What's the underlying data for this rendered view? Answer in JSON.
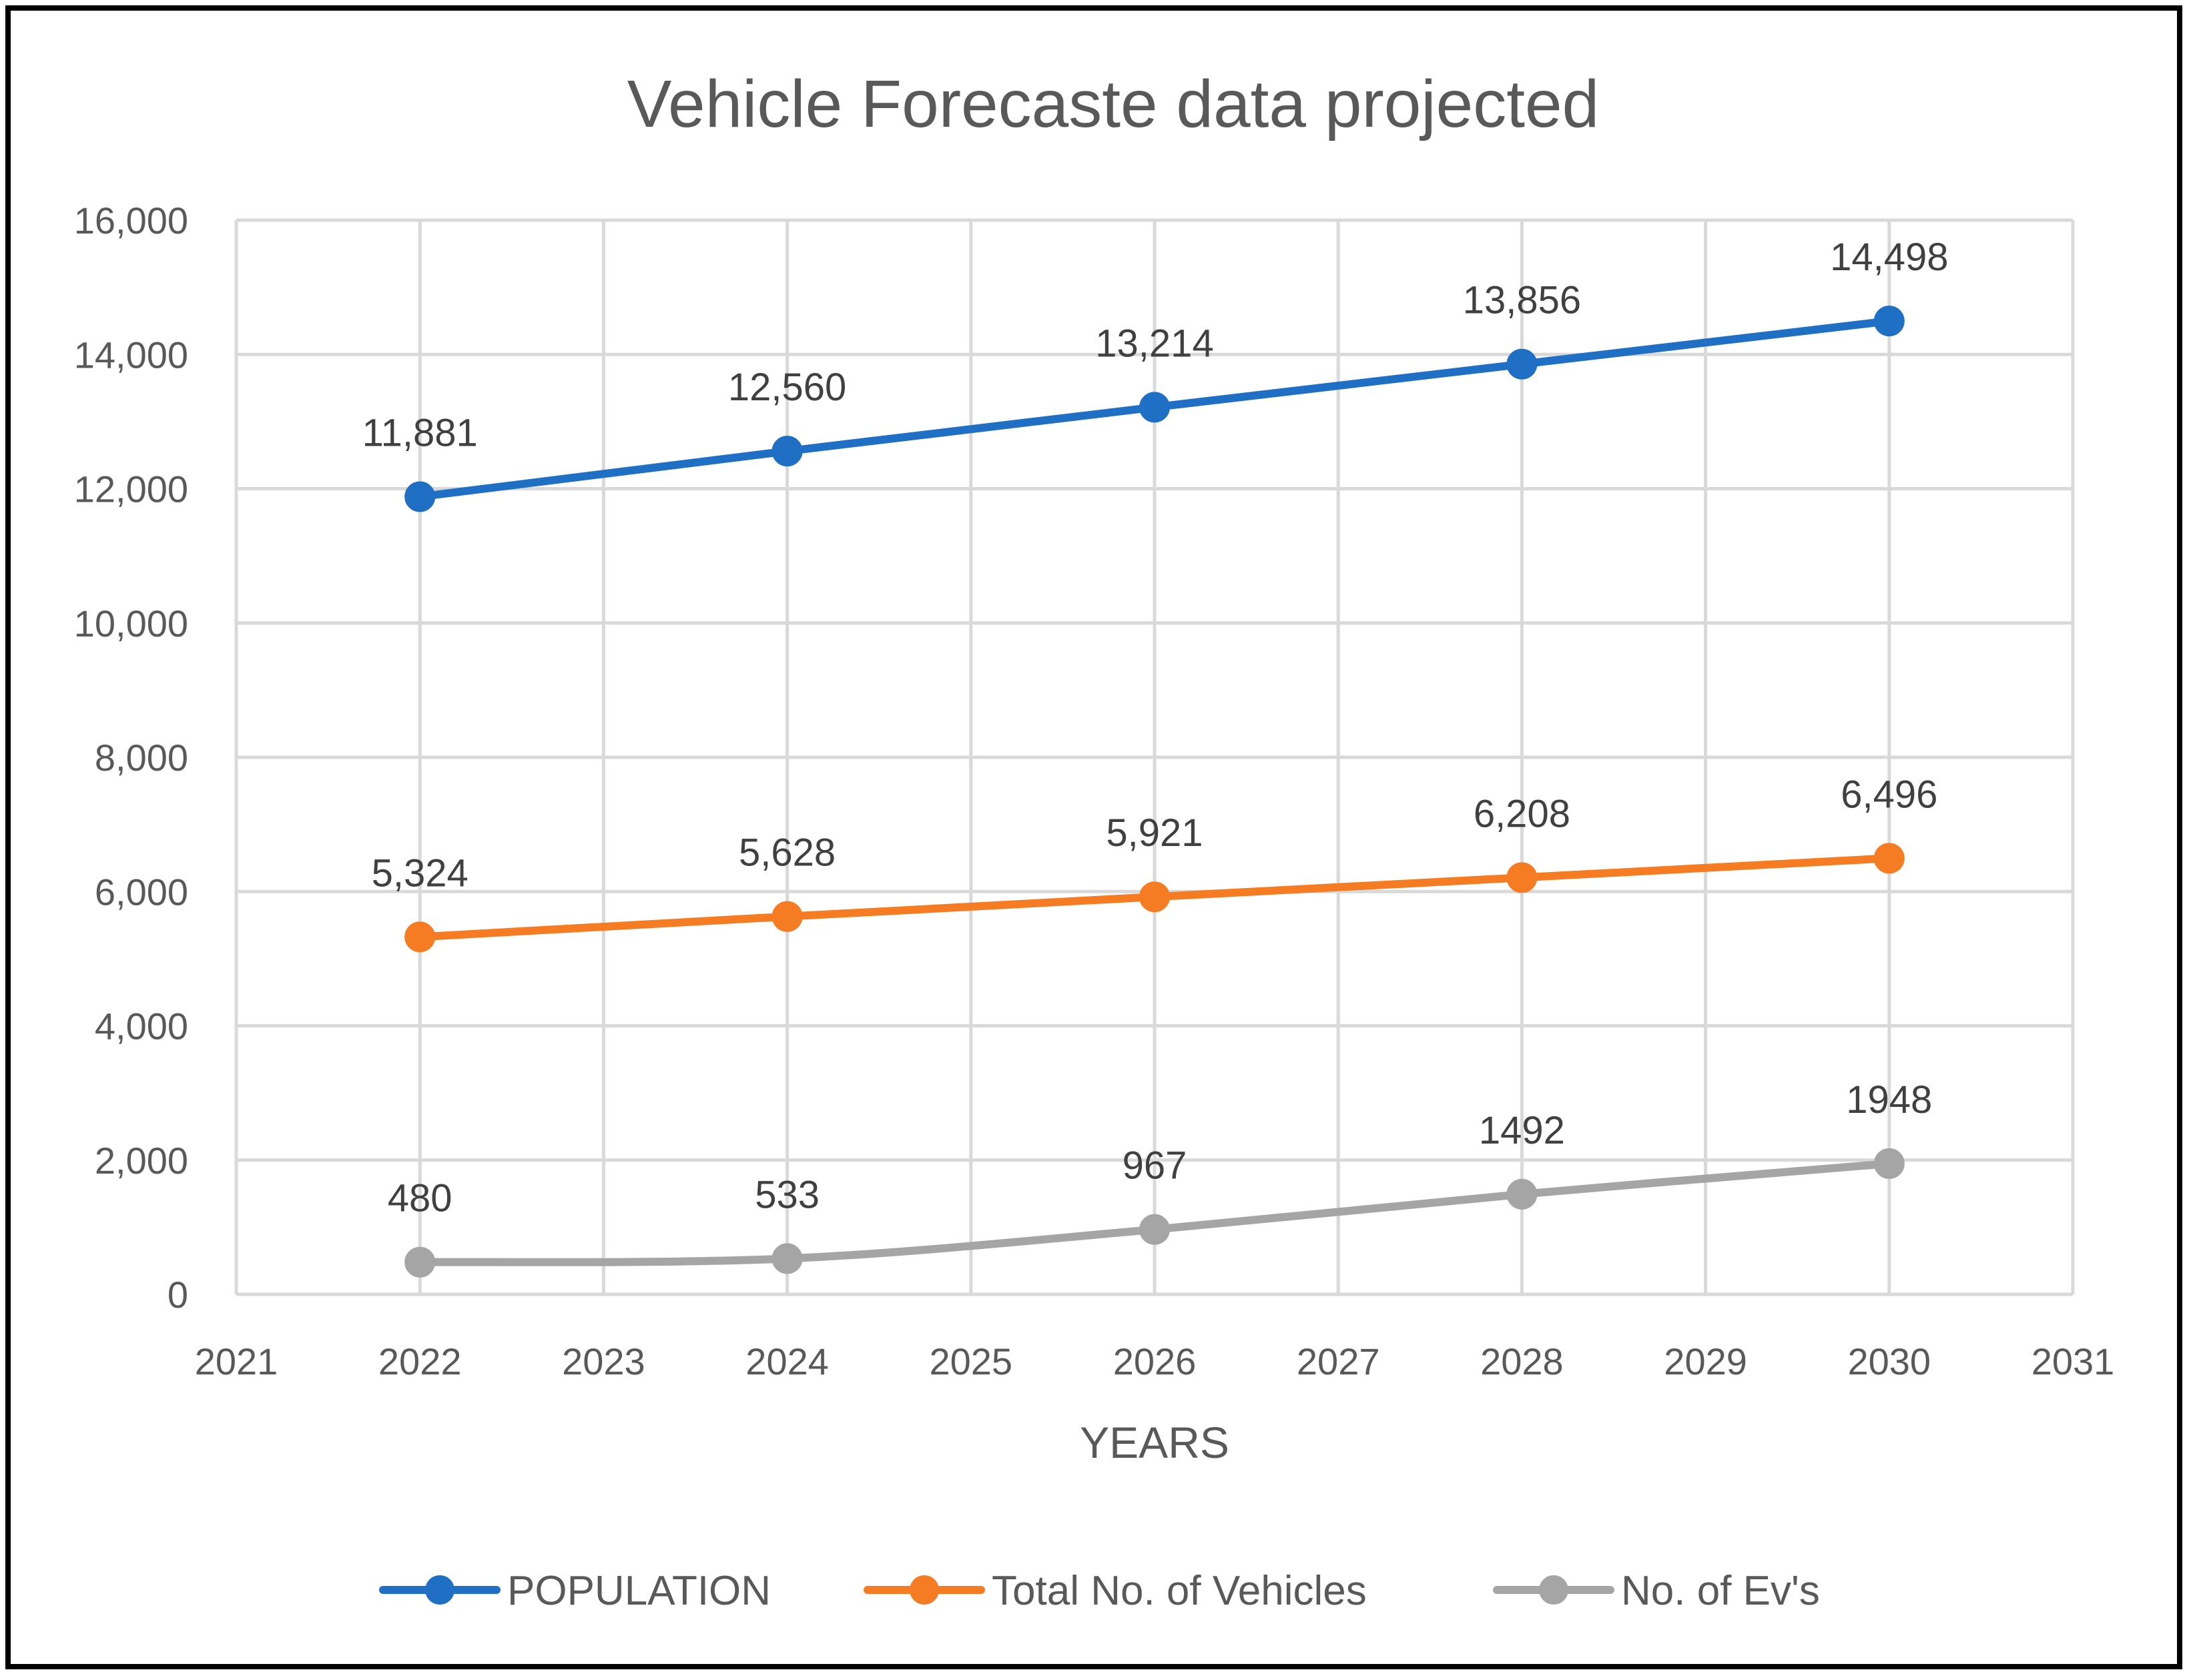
{
  "chart_data": {
    "type": "line",
    "title": "Vehicle Forecaste data projected",
    "xlabel": "YEARS",
    "ylabel": "",
    "xlim": [
      2021,
      2031
    ],
    "ylim": [
      0,
      16000
    ],
    "x_ticks": [
      "2021",
      "2022",
      "2023",
      "2024",
      "2025",
      "2026",
      "2027",
      "2028",
      "2029",
      "2030",
      "2031"
    ],
    "y_ticks": [
      "0",
      "2,000",
      "4,000",
      "6,000",
      "8,000",
      "10,000",
      "12,000",
      "14,000",
      "16,000"
    ],
    "grid": true,
    "legend_position": "bottom",
    "x": [
      2022,
      2024,
      2026,
      2028,
      2030
    ],
    "series": [
      {
        "name": "POPULATION",
        "color": "#1f6fc5",
        "values": [
          11881,
          12560,
          13214,
          13856,
          14498
        ],
        "labels": [
          "11,881",
          "12,560",
          "13,214",
          "13,856",
          "14,498"
        ]
      },
      {
        "name": "Total No. of Vehicles",
        "color": "#f57c23",
        "values": [
          5324,
          5628,
          5921,
          6208,
          6496
        ],
        "labels": [
          "5,324",
          "5,628",
          "5,921",
          "6,208",
          "6,496"
        ]
      },
      {
        "name": "No. of Ev's",
        "color": "#a5a5a5",
        "values": [
          480,
          533,
          967,
          1492,
          1948
        ],
        "labels": [
          "480",
          "533",
          "967",
          "1492",
          "1948"
        ]
      }
    ]
  }
}
